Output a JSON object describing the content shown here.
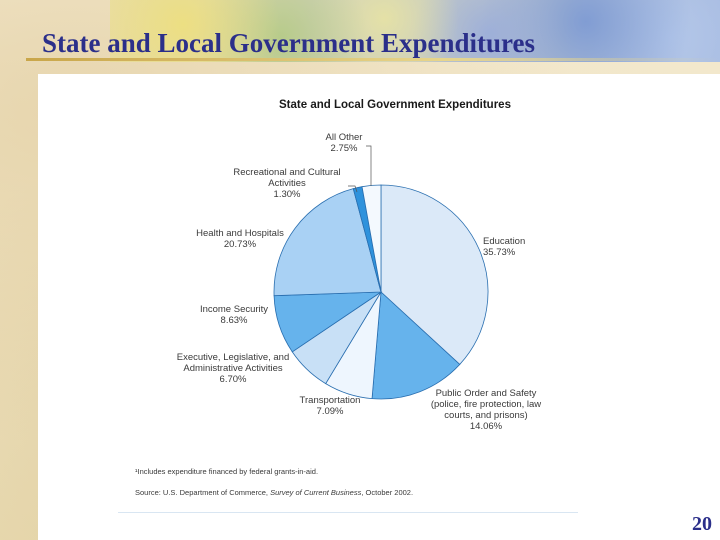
{
  "slide": {
    "title": "State and Local Government Expenditures",
    "page_number": "20"
  },
  "chart_data": {
    "type": "pie",
    "title": "State and Local Government Expenditures",
    "legend": "none",
    "slices": [
      {
        "lines": [
          "Education",
          "35.73%"
        ],
        "value": 35.73,
        "color": "#dbe9f8"
      },
      {
        "lines": [
          "Public Order and Safety",
          "(police, fire protection, law",
          "courts, and prisons)",
          "14.06%"
        ],
        "value": 14.06,
        "color": "#66b3ec"
      },
      {
        "lines": [
          "Transportation",
          "7.09%"
        ],
        "value": 7.09,
        "color": "#eef6fe"
      },
      {
        "lines": [
          "Executive, Legislative, and",
          "Administrative Activities",
          "6.70%"
        ],
        "value": 6.7,
        "color": "#c8e0f6"
      },
      {
        "lines": [
          "Income Security",
          "8.63%"
        ],
        "value": 8.63,
        "color": "#66b3ec"
      },
      {
        "lines": [
          "Health and Hospitals",
          "20.73%"
        ],
        "value": 20.73,
        "color": "#a9d1f4"
      },
      {
        "lines": [
          "Recreational and Cultural",
          "Activities",
          "1.30%"
        ],
        "value": 1.3,
        "color": "#2f92dc"
      },
      {
        "lines": [
          "All Other",
          "2.75%"
        ],
        "value": 2.75,
        "color": "#f4f9fe"
      }
    ],
    "notes": [
      [
        {
          "t": "¹Includes expenditure financed by federal grants-in-aid.",
          "i": false
        }
      ],
      [
        {
          "t": "Source: U.S. Department of Commerce, ",
          "i": false
        },
        {
          "t": "Survey of Current Business",
          "i": true
        },
        {
          "t": ", October 2002.",
          "i": false
        }
      ]
    ]
  }
}
